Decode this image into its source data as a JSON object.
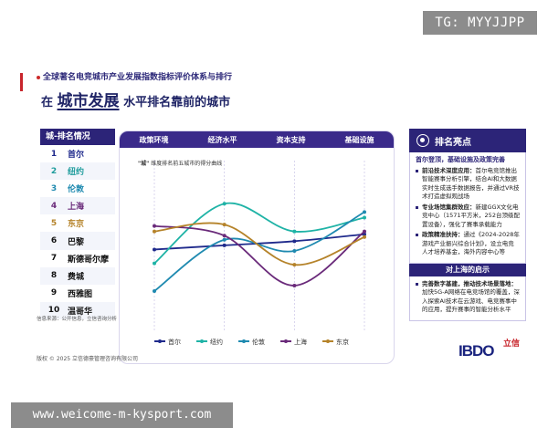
{
  "tg_badge": "TG: MYYJJPP",
  "url_badge": "www.weicome-m-kysport.com",
  "kicker": "全球著名电竞城市产业发展指数指标评价体系与排行",
  "headline": {
    "pre": "在",
    "big": "城市发展",
    "post": "水平排名靠前的城市"
  },
  "ranking": {
    "header": "城-排名情况",
    "rows": [
      {
        "num": "1",
        "city": "首尔",
        "color": "#1f2a8c",
        "bg": "#ffffff"
      },
      {
        "num": "2",
        "city": "纽约",
        "color": "#1e9c9c",
        "bg": "#f3f5fb"
      },
      {
        "num": "3",
        "city": "伦敦",
        "color": "#1f8ab0",
        "bg": "#ffffff"
      },
      {
        "num": "4",
        "city": "上海",
        "color": "#6a2a7a",
        "bg": "#f3f5fb"
      },
      {
        "num": "5",
        "city": "东京",
        "color": "#b5832a",
        "bg": "#ffffff"
      },
      {
        "num": "6",
        "city": "巴黎",
        "color": "#111111",
        "bg": "#f3f5fb"
      },
      {
        "num": "7",
        "city": "斯德哥尔摩",
        "color": "#111111",
        "bg": "#ffffff"
      },
      {
        "num": "8",
        "city": "费城",
        "color": "#111111",
        "bg": "#f3f5fb"
      },
      {
        "num": "9",
        "city": "西雅图",
        "color": "#111111",
        "bg": "#ffffff"
      },
      {
        "num": "10",
        "city": "温哥华",
        "color": "#111111",
        "bg": "#f3f5fb"
      }
    ]
  },
  "chart_data": {
    "type": "line",
    "title_prefix": "\"城\"",
    "title": "维度排名前五城市的得分曲线",
    "categories": [
      "政策环境",
      "经济水平",
      "资本支持",
      "基础设施"
    ],
    "ylim": [
      0,
      10
    ],
    "series": [
      {
        "name": "首尔",
        "color": "#1f2a8c",
        "values": [
          5.3,
          5.6,
          5.9,
          6.4
        ]
      },
      {
        "name": "纽约",
        "color": "#1fb3a6",
        "values": [
          4.3,
          8.6,
          6.6,
          7.6
        ]
      },
      {
        "name": "伦敦",
        "color": "#1f8ab0",
        "values": [
          2.3,
          6.0,
          5.2,
          8.0
        ]
      },
      {
        "name": "上海",
        "color": "#6a2a7a",
        "values": [
          7.0,
          6.3,
          2.7,
          6.6
        ]
      },
      {
        "name": "东京",
        "color": "#b5832a",
        "values": [
          6.6,
          7.1,
          4.2,
          6.2
        ]
      }
    ]
  },
  "side": {
    "header": "排名亮点",
    "sub": "首尔登顶，基础设施及政策完善",
    "bullets": [
      {
        "bold": "前沿技术深度应用：",
        "text": "首尔电竞馆推出智能赛事分析引擎，结合AI和大数据实时生成选手数据报告，并通过VR技术打造虚拟观战场"
      },
      {
        "bold": "专业场馆集群效应：",
        "text": "新建GGX文化电竞中心（1571平方米，252台顶级配置设备），强化了赛事承载能力"
      },
      {
        "bold": "政策精准扶持：",
        "text": "通过《2024-2028年游戏产业振兴综合计划》，设立电竞人才培养基金，海外内容中心等"
      }
    ],
    "shanghai_header": "对上海的启示",
    "shanghai_bullets": [
      {
        "bold": "完善数字基建，推动技术场景落地：",
        "text": "加快5G-A网络在电竞场馆的覆盖，深入探索AI技术在云游戏、电竞赛事中的应用，提升赛事的智能分析水平"
      }
    ]
  },
  "source": "信息来源：公开信息，立信咨询分析",
  "copyright": "版权 © 2025 立信德豪管理咨询有限公司",
  "logo": {
    "text": "IBDO",
    "cn": "立信"
  }
}
